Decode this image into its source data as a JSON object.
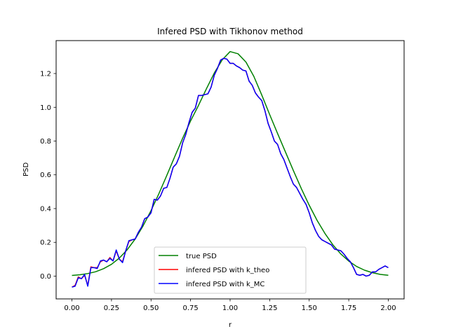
{
  "chart_data": {
    "type": "line",
    "title": "Infered PSD with Tikhonov method",
    "xlabel": "r",
    "ylabel": "PSD",
    "xlim": [
      -0.1,
      2.1
    ],
    "ylim": [
      -0.135,
      1.395
    ],
    "xticks": [
      0.0,
      0.25,
      0.5,
      0.75,
      1.0,
      1.25,
      1.5,
      1.75,
      2.0
    ],
    "xtick_labels": [
      "0.00",
      "0.25",
      "0.50",
      "0.75",
      "1.00",
      "1.25",
      "1.50",
      "1.75",
      "2.00"
    ],
    "yticks": [
      0.0,
      0.2,
      0.4,
      0.6,
      0.8,
      1.0,
      1.2
    ],
    "ytick_labels": [
      "0.0",
      "0.2",
      "0.4",
      "0.6",
      "0.8",
      "1.0",
      "1.2"
    ],
    "grid": false,
    "legend_position": "bottom-center",
    "series": [
      {
        "name": "true PSD",
        "color": "#008000",
        "x": [
          0.0,
          0.05,
          0.1,
          0.15,
          0.2,
          0.25,
          0.3,
          0.35,
          0.4,
          0.45,
          0.5,
          0.55,
          0.6,
          0.65,
          0.7,
          0.75,
          0.8,
          0.85,
          0.9,
          0.95,
          1.0,
          1.05,
          1.1,
          1.15,
          1.2,
          1.25,
          1.3,
          1.35,
          1.4,
          1.45,
          1.5,
          1.55,
          1.6,
          1.65,
          1.7,
          1.75,
          1.8,
          1.85,
          1.9,
          1.95,
          2.0
        ],
        "values": [
          0.004,
          0.008,
          0.015,
          0.026,
          0.044,
          0.07,
          0.107,
          0.157,
          0.22,
          0.298,
          0.388,
          0.489,
          0.597,
          0.708,
          0.817,
          0.919,
          1.011,
          1.109,
          1.203,
          1.281,
          1.33,
          1.317,
          1.268,
          1.183,
          1.073,
          0.957,
          0.845,
          0.735,
          0.625,
          0.519,
          0.42,
          0.33,
          0.252,
          0.185,
          0.131,
          0.089,
          0.057,
          0.035,
          0.02,
          0.01,
          0.005
        ]
      },
      {
        "name": "infered PSD with k_theo",
        "color": "#ff0000",
        "x": [
          0.0,
          0.02,
          0.04,
          0.06,
          0.08,
          0.1,
          0.12,
          0.14,
          0.16,
          0.18,
          0.2,
          0.22,
          0.24,
          0.26,
          0.28,
          0.3,
          0.32,
          0.34,
          0.36,
          0.38,
          0.4,
          0.42,
          0.44,
          0.46,
          0.48,
          0.5,
          0.52,
          0.54,
          0.56,
          0.58,
          0.6,
          0.62,
          0.64,
          0.66,
          0.68,
          0.7,
          0.72,
          0.74,
          0.76,
          0.78,
          0.8,
          0.82,
          0.84,
          0.86,
          0.88,
          0.9,
          0.92,
          0.94,
          0.96,
          0.98,
          1.0,
          1.02,
          1.04,
          1.06,
          1.08,
          1.1,
          1.12,
          1.14,
          1.16,
          1.18,
          1.2,
          1.22,
          1.24,
          1.26,
          1.28,
          1.3,
          1.32,
          1.34,
          1.36,
          1.38,
          1.4,
          1.42,
          1.44,
          1.46,
          1.48,
          1.5,
          1.52,
          1.54,
          1.56,
          1.58,
          1.6,
          1.62,
          1.64,
          1.66,
          1.68,
          1.7,
          1.72,
          1.74,
          1.76,
          1.78,
          1.8,
          1.82,
          1.84,
          1.86,
          1.88,
          1.9,
          1.92,
          1.94,
          1.96,
          1.98,
          2.0
        ],
        "values": [
          -0.065,
          -0.055,
          -0.005,
          -0.015,
          0.005,
          -0.055,
          0.055,
          0.05,
          0.05,
          0.085,
          0.095,
          0.085,
          0.11,
          0.09,
          0.15,
          0.1,
          0.085,
          0.15,
          0.205,
          0.215,
          0.22,
          0.26,
          0.29,
          0.34,
          0.35,
          0.375,
          0.455,
          0.45,
          0.475,
          0.52,
          0.525,
          0.58,
          0.645,
          0.665,
          0.71,
          0.79,
          0.84,
          0.91,
          0.97,
          0.995,
          1.07,
          1.07,
          1.075,
          1.08,
          1.12,
          1.19,
          1.23,
          1.28,
          1.29,
          1.285,
          1.26,
          1.26,
          1.245,
          1.235,
          1.22,
          1.215,
          1.155,
          1.13,
          1.085,
          1.06,
          1.04,
          0.98,
          0.905,
          0.855,
          0.8,
          0.78,
          0.725,
          0.69,
          0.64,
          0.59,
          0.545,
          0.525,
          0.49,
          0.455,
          0.425,
          0.375,
          0.315,
          0.27,
          0.235,
          0.215,
          0.205,
          0.195,
          0.185,
          0.16,
          0.155,
          0.15,
          0.13,
          0.105,
          0.085,
          0.05,
          0.01,
          0.005,
          0.01,
          0.0,
          0.005,
          0.025,
          0.025,
          0.04,
          0.05,
          0.06,
          0.05
        ]
      },
      {
        "name": "infered PSD with k_MC",
        "color": "#0000ff",
        "x": [
          0.0,
          0.02,
          0.04,
          0.06,
          0.08,
          0.1,
          0.12,
          0.14,
          0.16,
          0.18,
          0.2,
          0.22,
          0.24,
          0.26,
          0.28,
          0.3,
          0.32,
          0.34,
          0.36,
          0.38,
          0.4,
          0.42,
          0.44,
          0.46,
          0.48,
          0.5,
          0.52,
          0.54,
          0.56,
          0.58,
          0.6,
          0.62,
          0.64,
          0.66,
          0.68,
          0.7,
          0.72,
          0.74,
          0.76,
          0.78,
          0.8,
          0.82,
          0.84,
          0.86,
          0.88,
          0.9,
          0.92,
          0.94,
          0.96,
          0.98,
          1.0,
          1.02,
          1.04,
          1.06,
          1.08,
          1.1,
          1.12,
          1.14,
          1.16,
          1.18,
          1.2,
          1.22,
          1.24,
          1.26,
          1.28,
          1.3,
          1.32,
          1.34,
          1.36,
          1.38,
          1.4,
          1.42,
          1.44,
          1.46,
          1.48,
          1.5,
          1.52,
          1.54,
          1.56,
          1.58,
          1.6,
          1.62,
          1.64,
          1.66,
          1.68,
          1.7,
          1.72,
          1.74,
          1.76,
          1.78,
          1.8,
          1.82,
          1.84,
          1.86,
          1.88,
          1.9,
          1.92,
          1.94,
          1.96,
          1.98,
          2.0
        ],
        "values": [
          -0.065,
          -0.06,
          -0.01,
          -0.015,
          0.01,
          -0.06,
          0.05,
          0.05,
          0.045,
          0.09,
          0.095,
          0.085,
          0.105,
          0.09,
          0.155,
          0.1,
          0.08,
          0.15,
          0.21,
          0.215,
          0.22,
          0.26,
          0.29,
          0.34,
          0.35,
          0.375,
          0.455,
          0.45,
          0.475,
          0.52,
          0.525,
          0.58,
          0.645,
          0.665,
          0.71,
          0.79,
          0.84,
          0.91,
          0.97,
          0.995,
          1.07,
          1.07,
          1.075,
          1.08,
          1.12,
          1.19,
          1.23,
          1.28,
          1.29,
          1.285,
          1.26,
          1.26,
          1.245,
          1.235,
          1.22,
          1.215,
          1.155,
          1.13,
          1.085,
          1.06,
          1.04,
          0.98,
          0.905,
          0.855,
          0.8,
          0.78,
          0.725,
          0.69,
          0.64,
          0.59,
          0.545,
          0.525,
          0.49,
          0.455,
          0.425,
          0.375,
          0.315,
          0.27,
          0.235,
          0.215,
          0.205,
          0.195,
          0.185,
          0.16,
          0.155,
          0.15,
          0.13,
          0.105,
          0.085,
          0.05,
          0.01,
          0.005,
          0.01,
          0.0,
          0.005,
          0.025,
          0.025,
          0.04,
          0.05,
          0.06,
          0.05
        ]
      }
    ]
  }
}
